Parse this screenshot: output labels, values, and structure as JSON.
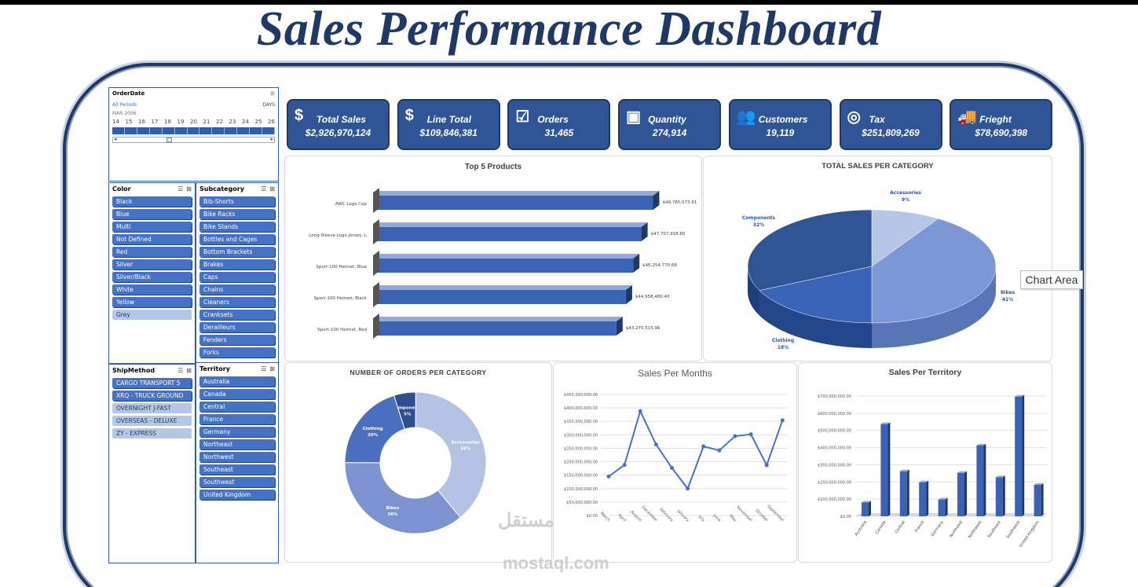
{
  "title": "Sales Performance Dashboard",
  "timeline": {
    "title": "OrderDate",
    "all_periods": "All Periods",
    "unit": "DAYS",
    "period": "MAR 2006",
    "days": [
      "14",
      "15",
      "16",
      "17",
      "18",
      "19",
      "20",
      "21",
      "22",
      "23",
      "24",
      "25",
      "26"
    ]
  },
  "color_slicer": {
    "title": "Color",
    "items": [
      {
        "label": "Black",
        "selected": true
      },
      {
        "label": "Blue",
        "selected": true
      },
      {
        "label": "Multi",
        "selected": true
      },
      {
        "label": "Not Defined",
        "selected": true
      },
      {
        "label": "Red",
        "selected": true
      },
      {
        "label": "Silver",
        "selected": true
      },
      {
        "label": "Silver/Black",
        "selected": true
      },
      {
        "label": "White",
        "selected": true
      },
      {
        "label": "Yellow",
        "selected": true
      },
      {
        "label": "Grey",
        "selected": false
      }
    ]
  },
  "subcategory_slicer": {
    "title": "Subcategory",
    "items": [
      "Bib-Shorts",
      "Bike Racks",
      "Bike Stands",
      "Bottles and Cages",
      "Bottom Brackets",
      "Brakes",
      "Caps",
      "Chains",
      "Cleaners",
      "Cranksets",
      "Derailleurs",
      "Fenders",
      "Forks"
    ]
  },
  "ship_slicer": {
    "title": "ShipMethod",
    "items": [
      {
        "label": "CARGO TRANSPORT 5",
        "selected": true
      },
      {
        "label": "XRQ - TRUCK GROUND",
        "selected": true
      },
      {
        "label": "OVERNIGHT J-FAST",
        "selected": false
      },
      {
        "label": "OVERSEAS - DELUXE",
        "selected": false
      },
      {
        "label": "ZY - EXPRESS",
        "selected": false
      }
    ]
  },
  "territory_slicer": {
    "title": "Territory",
    "items": [
      "Australia",
      "Canada",
      "Central",
      "France",
      "Germany",
      "Northeast",
      "Northwest",
      "Southeast",
      "Southwest",
      "United Kingdom"
    ]
  },
  "kpis": [
    {
      "icon": "money-icon",
      "glyph": "$",
      "label": "Total Sales",
      "value": "$2,926,970,124"
    },
    {
      "icon": "dollar-icon",
      "glyph": "$",
      "label": "Line Total",
      "value": "$109,846,381"
    },
    {
      "icon": "checklist-icon",
      "glyph": "☑",
      "label": "Orders",
      "value": "31,465"
    },
    {
      "icon": "presentation-icon",
      "glyph": "▣",
      "label": "Quantity",
      "value": "274,914"
    },
    {
      "icon": "people-icon",
      "glyph": "👥",
      "label": "Customers",
      "value": "19,119"
    },
    {
      "icon": "coins-icon",
      "glyph": "◎",
      "label": "Tax",
      "value": "$251,809,269"
    },
    {
      "icon": "truck-icon",
      "glyph": "🚚",
      "label": "Frieght",
      "value": "$78,690,398"
    }
  ],
  "tooltip": "Chart Area",
  "watermark": {
    "arabic": "مستقل",
    "latin": "mostaql.com"
  },
  "colors": {
    "navy": "#1f3864",
    "blue": "#4472c4",
    "kpi": "#2f5597"
  },
  "chart_data": [
    {
      "type": "bar",
      "title": "Top 5 Products",
      "orientation": "horizontal",
      "categories": [
        "AWC Logo Cap",
        "Long-Sleeve Logo Jersey, L",
        "Sport-100 Helmet, Blue",
        "Sport-100 Helmet, Black",
        "Sport-100 Helmet, Red"
      ],
      "values": [
        49785073.91,
        47707918.8,
        46254770.68,
        44958480.4,
        43270515.96
      ],
      "labels": [
        "$49,785,073.91",
        "$47,707,918.80",
        "$46,254,770.68",
        "$44,958,480.40",
        "$43,270,515.96"
      ]
    },
    {
      "type": "pie",
      "title": "TOTAL SALES PER CATEGORY",
      "categories": [
        "Accessories",
        "Bikes",
        "Clothing",
        "Components"
      ],
      "values": [
        9,
        41,
        18,
        32
      ],
      "labels": [
        "9%",
        "41%",
        "18%",
        "32%"
      ]
    },
    {
      "type": "pie",
      "subtype": "doughnut",
      "title": "NUMBER OF ORDERS PER CATEGORY",
      "categories": [
        "Components",
        "Accessories",
        "Bikes",
        "Clothing"
      ],
      "values": [
        5,
        39,
        36,
        20
      ],
      "labels": [
        "5%",
        "39%",
        "36%",
        "20%"
      ]
    },
    {
      "type": "line",
      "title": "Sales Per Months",
      "categories": [
        "March",
        "April",
        "August",
        "December",
        "February",
        "January",
        "July",
        "June",
        "May",
        "November",
        "October",
        "September"
      ],
      "values": [
        145000000,
        188000000,
        388000000,
        264000000,
        177000000,
        100000000,
        257000000,
        242000000,
        295000000,
        302000000,
        187000000,
        354000000
      ],
      "yticks": [
        "$0.00",
        "$50,000,000.00",
        "$100,000,000.00",
        "$150,000,000.00",
        "$200,000,000.00",
        "$250,000,000.00",
        "$300,000,000.00",
        "$350,000,000.00",
        "$400,000,000.00",
        "$450,000,000.00"
      ],
      "ylim": [
        0,
        450000000
      ]
    },
    {
      "type": "bar",
      "title": "Sales Per Territory",
      "categories": [
        "Australia",
        "Canada",
        "Central",
        "France",
        "Germany",
        "Northeast",
        "Northwest",
        "Southeast",
        "Southwest",
        "United Kingdom"
      ],
      "values": [
        80000000,
        537000000,
        262000000,
        198000000,
        98000000,
        253000000,
        412000000,
        227000000,
        697000000,
        183000000
      ],
      "yticks": [
        "$0.00",
        "$100,000,000.00",
        "$200,000,000.00",
        "$300,000,000.00",
        "$400,000,000.00",
        "$500,000,000.00",
        "$600,000,000.00",
        "$700,000,000.00"
      ],
      "ylim": [
        0,
        700000000
      ]
    }
  ]
}
